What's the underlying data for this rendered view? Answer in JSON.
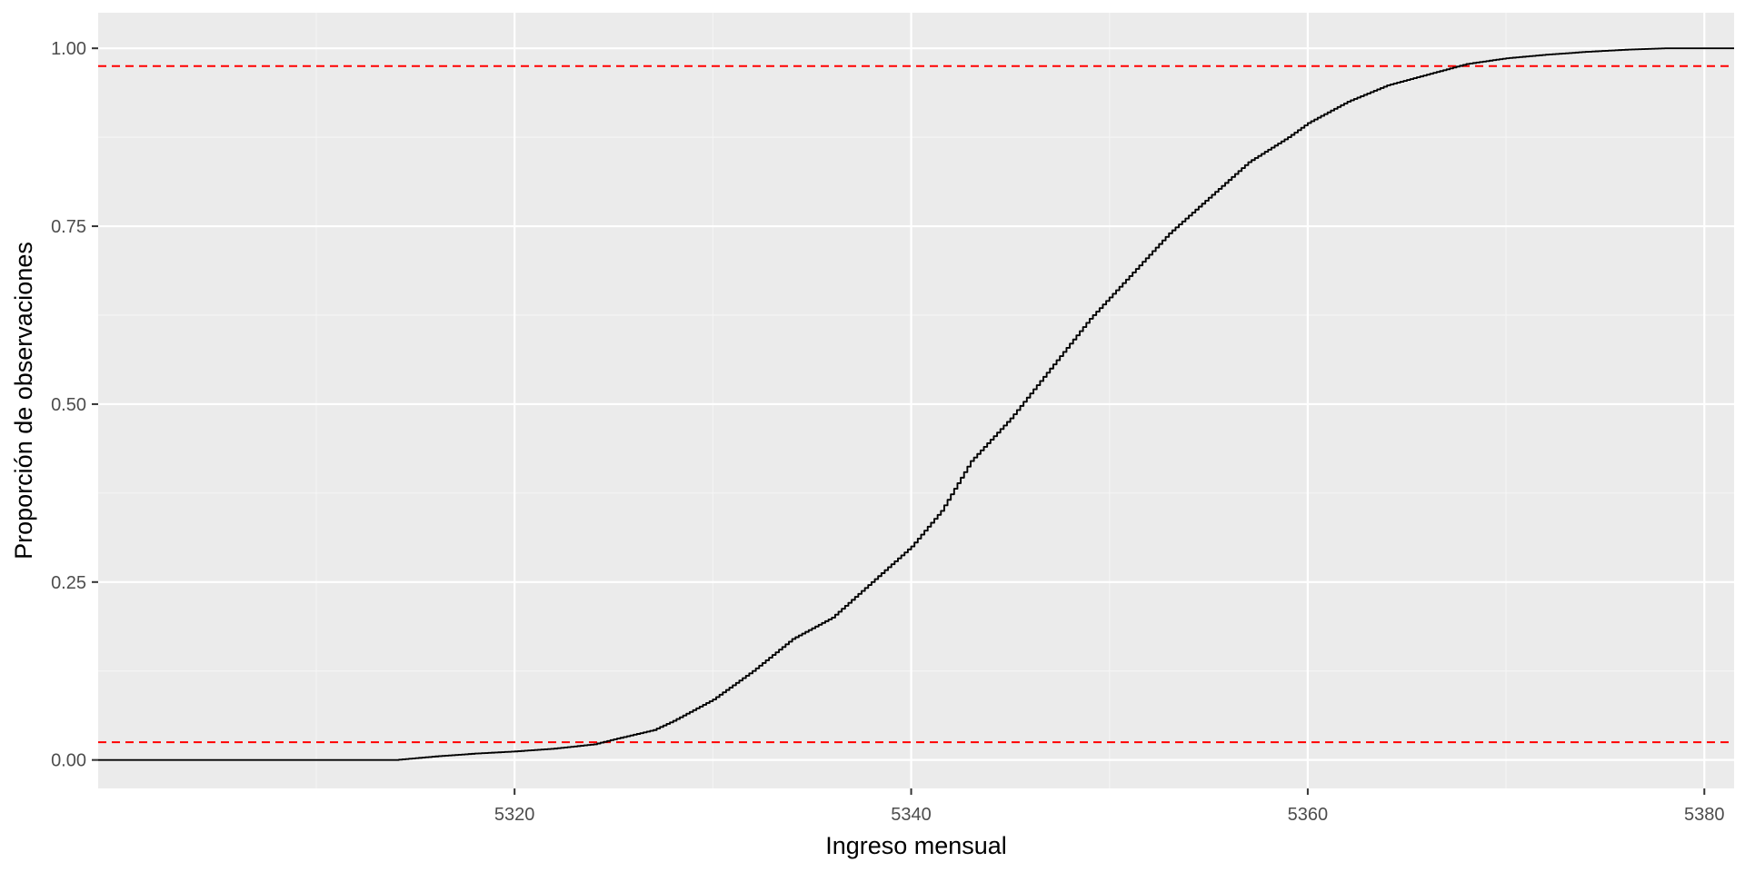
{
  "chart_data": {
    "type": "line",
    "title": "",
    "xlabel": "Ingreso mensual",
    "ylabel": "Proporción de observaciones",
    "xlim": [
      5299.0,
      5381.5
    ],
    "ylim": [
      -0.04,
      1.05
    ],
    "x_ticks": [
      5320,
      5340,
      5360,
      5380
    ],
    "x_tick_labels": [
      "5320",
      "5340",
      "5360",
      "5380"
    ],
    "y_ticks": [
      0.0,
      0.25,
      0.5,
      0.75,
      1.0
    ],
    "y_tick_labels": [
      "0.00",
      "0.25",
      "0.50",
      "0.75",
      "1.00"
    ],
    "grid": true,
    "legend": "none",
    "series": [
      {
        "kind": "ecdf-step",
        "color": "#000000",
        "x": [
          5299.0,
          5314.0,
          5316.0,
          5318.0,
          5320.0,
          5322.0,
          5324.0,
          5325.0,
          5327.0,
          5328.0,
          5330.0,
          5332.0,
          5334.0,
          5336.0,
          5338.0,
          5340.0,
          5341.5,
          5343.0,
          5345.0,
          5347.0,
          5349.0,
          5351.0,
          5353.0,
          5355.0,
          5357.0,
          5359.0,
          5360.0,
          5362.0,
          5364.0,
          5366.0,
          5368.0,
          5370.0,
          5372.0,
          5374.0,
          5376.0,
          5378.0,
          5381.5
        ],
        "y": [
          0.0,
          0.0,
          0.005,
          0.009,
          0.012,
          0.016,
          0.022,
          0.029,
          0.042,
          0.055,
          0.085,
          0.125,
          0.17,
          0.2,
          0.25,
          0.3,
          0.35,
          0.42,
          0.48,
          0.55,
          0.62,
          0.68,
          0.74,
          0.79,
          0.84,
          0.875,
          0.895,
          0.925,
          0.948,
          0.963,
          0.978,
          0.986,
          0.991,
          0.995,
          0.998,
          1.0,
          1.0
        ]
      }
    ],
    "reference_lines": [
      {
        "orientation": "horizontal",
        "y": 0.025,
        "color": "#ff0000",
        "style": "dashed"
      },
      {
        "orientation": "horizontal",
        "y": 0.975,
        "color": "#ff0000",
        "style": "dashed"
      }
    ],
    "colors": {
      "panel_background": "#ebebeb",
      "grid_major": "#ffffff",
      "grid_minor": "#f5f5f5",
      "tick_text": "#4d4d4d",
      "axis_title_text": "#000000"
    }
  }
}
